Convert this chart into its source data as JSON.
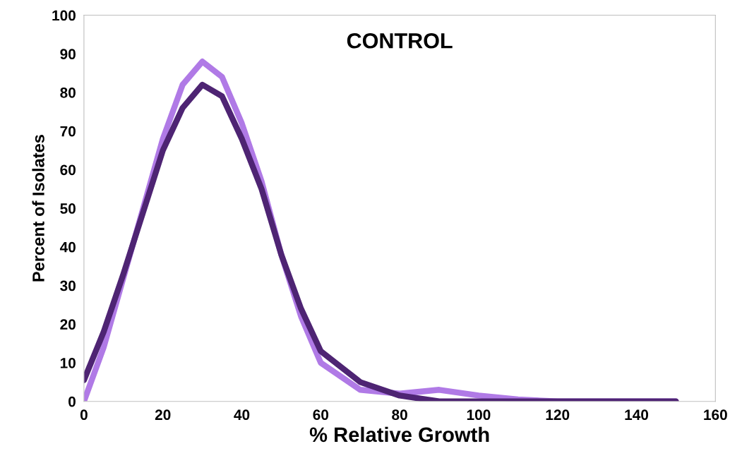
{
  "chart_data": {
    "type": "line",
    "title": "CONTROL",
    "xlabel": "% Relative Growth",
    "ylabel": "Percent of Isolates",
    "x": [
      0,
      5,
      10,
      15,
      20,
      25,
      30,
      35,
      40,
      45,
      50,
      55,
      60,
      70,
      80,
      90,
      100,
      110,
      120,
      130,
      140,
      150
    ],
    "series": [
      {
        "color": "#b07ae6",
        "values": [
          0,
          14,
          32,
          50,
          68,
          82,
          88,
          84,
          72,
          57,
          38,
          22,
          10,
          3,
          2,
          3,
          1.5,
          0.5,
          0,
          0,
          0,
          0
        ]
      },
      {
        "color": "#4e2473",
        "values": [
          5.5,
          18,
          33,
          49,
          65,
          76,
          82,
          79,
          68,
          55,
          38,
          24,
          13,
          5,
          1.5,
          0,
          0,
          0,
          0,
          0,
          0,
          0
        ]
      }
    ],
    "xlim": [
      0,
      160
    ],
    "xticks": [
      0,
      20,
      40,
      60,
      80,
      100,
      120,
      140,
      160
    ],
    "ylim": [
      0,
      100
    ],
    "yticks": [
      0,
      10,
      20,
      30,
      40,
      50,
      60,
      70,
      80,
      90,
      100
    ],
    "grid": false,
    "legend": false,
    "marker": "none",
    "line_style": "solid"
  }
}
